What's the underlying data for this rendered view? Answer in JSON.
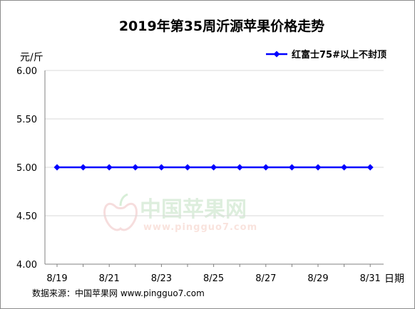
{
  "chart_data": {
    "type": "line",
    "title": "2019年第35周沂源苹果价格走势",
    "ylabel": "元/斤",
    "xlabel": "日期",
    "ylim": [
      4.0,
      6.0
    ],
    "yticks": [
      "6.00",
      "5.50",
      "5.00",
      "4.50",
      "4.00"
    ],
    "ytick_values": [
      6.0,
      5.5,
      5.0,
      4.5,
      4.0
    ],
    "x": [
      "8/19",
      "8/20",
      "8/21",
      "8/22",
      "8/23",
      "8/24",
      "8/25",
      "8/26",
      "8/27",
      "8/28",
      "8/29",
      "8/30",
      "8/31"
    ],
    "xtick_labels": [
      "8/19",
      "8/21",
      "8/23",
      "8/25",
      "8/27",
      "8/29",
      "8/31"
    ],
    "series": [
      {
        "name": "红富士75#以上不封顶",
        "color": "#0000ff",
        "values": [
          5.0,
          5.0,
          5.0,
          5.0,
          5.0,
          5.0,
          5.0,
          5.0,
          5.0,
          5.0,
          5.0,
          5.0,
          5.0
        ]
      }
    ],
    "legend_position": "top-right",
    "grid": "horizontal",
    "watermark": "中国苹果网 www.pingguo7.com"
  },
  "source": "数据来源：中国苹果网 www.pingguo7.com"
}
